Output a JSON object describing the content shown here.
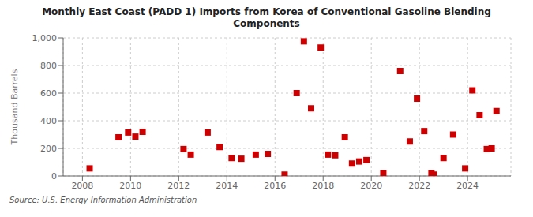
{
  "chart_data": {
    "type": "scatter",
    "title": "Monthly East Coast (PADD 1) Imports from Korea of Conventional Gasoline Blending\nComponents",
    "ylabel": "Thousand Barrels",
    "annotations": [
      "Source: U.S. Energy Information Administration"
    ],
    "x": [
      2008.3,
      2009.5,
      2009.9,
      2010.2,
      2010.5,
      2012.2,
      2012.5,
      2013.2,
      2013.7,
      2014.2,
      2014.6,
      2015.2,
      2015.7,
      2016.4,
      2016.9,
      2017.2,
      2017.5,
      2017.9,
      2018.2,
      2018.5,
      2018.9,
      2019.2,
      2019.5,
      2019.8,
      2020.5,
      2021.2,
      2021.6,
      2021.9,
      2022.2,
      2022.5,
      2022.6,
      2023.0,
      2023.4,
      2023.9,
      2024.2,
      2024.5,
      2024.8,
      2025.0,
      2025.2
    ],
    "values": [
      55,
      280,
      315,
      285,
      320,
      195,
      155,
      315,
      210,
      130,
      125,
      155,
      160,
      10,
      600,
      975,
      490,
      930,
      155,
      150,
      280,
      90,
      105,
      115,
      20,
      760,
      250,
      560,
      325,
      20,
      10,
      130,
      300,
      55,
      620,
      440,
      195,
      200,
      470
    ],
    "color": "#cc0000",
    "marker": "square",
    "xlim": [
      2007.2,
      2025.8
    ],
    "xticks": [
      2008,
      2010,
      2012,
      2014,
      2016,
      2018,
      2020,
      2022,
      2024
    ],
    "ylim": [
      0,
      1000
    ],
    "yticks": [
      0,
      200,
      400,
      600,
      800,
      {
        "value": 1000,
        "label": "1,000"
      }
    ],
    "grid": true
  }
}
